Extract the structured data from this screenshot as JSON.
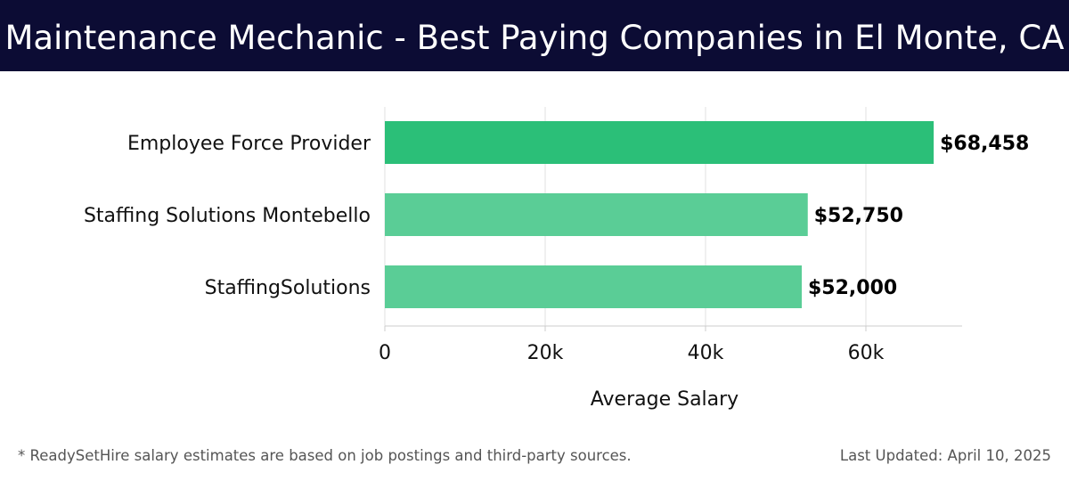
{
  "header": {
    "title": "Maintenance Mechanic - Best Paying Companies in El Monte, CA"
  },
  "chart_data": {
    "type": "bar",
    "orientation": "horizontal",
    "categories": [
      "Employee Force Provider",
      "Staffing Solutions Montebello",
      "StaffingSolutions"
    ],
    "values": [
      68458,
      52750,
      52000
    ],
    "value_labels": [
      "$68,458",
      "$52,750",
      "$52,000"
    ],
    "xlabel": "Average Salary",
    "ylabel": "",
    "xlim": [
      0,
      72000
    ],
    "x_ticks": [
      0,
      20000,
      40000,
      60000
    ],
    "x_tick_labels": [
      "0",
      "20k",
      "40k",
      "60k"
    ],
    "grid": "vertical",
    "colors": {
      "highlight": "#2bbf78",
      "default": "#5acd96",
      "grid": "#e2e2e2",
      "axis": "#cccccc",
      "text": "#111111"
    }
  },
  "footer": {
    "note": "* ReadySetHire salary estimates are based on job postings and third-party sources.",
    "updated": "Last Updated: April 10, 2025"
  }
}
